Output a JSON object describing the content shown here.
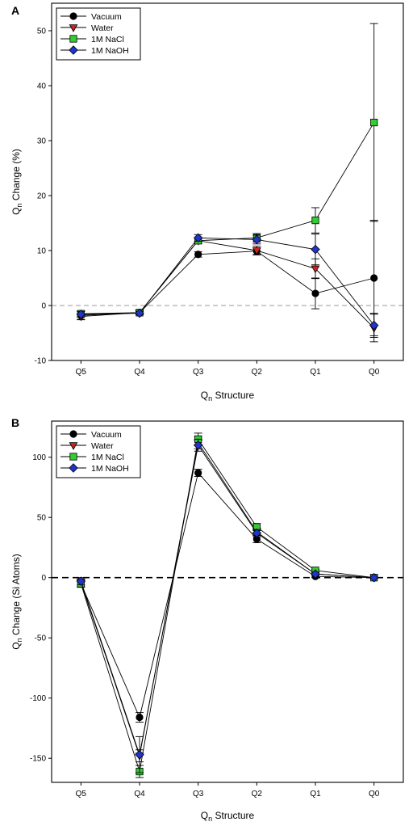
{
  "chart_data": [
    {
      "type": "line",
      "panel_label": "A",
      "categories": [
        "Q5",
        "Q4",
        "Q3",
        "Q2",
        "Q1",
        "Q0"
      ],
      "ylabel_main": "Q",
      "ylabel_sub": "n",
      "ylabel_rest": " Change (%)",
      "xlabel_main": "Q",
      "xlabel_sub": "n",
      "xlabel_rest": " Structure",
      "ylim": [
        -10,
        55
      ],
      "yticks": [
        -10,
        0,
        10,
        20,
        30,
        40,
        50
      ],
      "zero_line": "dashed gray",
      "legend_position": "top-left",
      "series": [
        {
          "name": "Vacuum",
          "color": "#000000",
          "marker": "circle",
          "values": [
            -1.8,
            -1.3,
            9.3,
            9.9,
            2.2,
            5.0
          ],
          "errors": [
            0.8,
            0.3,
            0.5,
            0.6,
            2.8,
            10.5
          ]
        },
        {
          "name": "Water",
          "color": "#cc2222",
          "marker": "triangle-down",
          "values": [
            -2.0,
            -1.3,
            11.8,
            10.0,
            6.7,
            -4.1
          ],
          "errors": [
            0.5,
            0.3,
            0.5,
            0.8,
            1.8,
            2.5
          ]
        },
        {
          "name": "1M NaCl",
          "color": "#33cc33",
          "marker": "square",
          "values": [
            -1.5,
            -1.3,
            11.8,
            12.3,
            15.5,
            33.3
          ],
          "errors": [
            0.5,
            0.3,
            0.5,
            0.8,
            2.3,
            18.0
          ]
        },
        {
          "name": "1M NaOH",
          "color": "#2233cc",
          "marker": "diamond",
          "values": [
            -1.6,
            -1.4,
            12.3,
            12.0,
            10.2,
            -3.6
          ],
          "errors": [
            0.5,
            0.3,
            0.6,
            0.8,
            2.8,
            2.2
          ]
        }
      ]
    },
    {
      "type": "line",
      "panel_label": "B",
      "categories": [
        "Q5",
        "Q4",
        "Q3",
        "Q2",
        "Q1",
        "Q0"
      ],
      "ylabel_main": "Q",
      "ylabel_sub": "n",
      "ylabel_rest": " Change (Si Atoms)",
      "xlabel_main": "Q",
      "xlabel_sub": "n",
      "xlabel_rest": " Structure",
      "ylim": [
        -170,
        130
      ],
      "yticks": [
        -150,
        -100,
        -50,
        0,
        50,
        100
      ],
      "zero_line": "dashed black",
      "legend_position": "top-left",
      "series": [
        {
          "name": "Vacuum",
          "color": "#000000",
          "marker": "circle",
          "values": [
            -5,
            -116,
            87,
            32,
            1,
            0
          ],
          "errors": [
            3,
            4,
            3,
            3,
            1,
            0.5
          ]
        },
        {
          "name": "Water",
          "color": "#cc2222",
          "marker": "triangle-down",
          "values": [
            -4,
            -148,
            112,
            38,
            3,
            0
          ],
          "errors": [
            3,
            5,
            5,
            3,
            1,
            0.5
          ]
        },
        {
          "name": "1M NaCl",
          "color": "#33cc33",
          "marker": "square",
          "values": [
            -5,
            -161,
            115,
            42,
            6,
            0
          ],
          "errors": [
            3,
            5,
            5,
            3,
            1,
            0.5
          ]
        },
        {
          "name": "1M NaOH",
          "color": "#2233cc",
          "marker": "diamond",
          "values": [
            -3,
            -147,
            110,
            37,
            3,
            0
          ],
          "errors": [
            3,
            15,
            5,
            3,
            1,
            0.5
          ]
        }
      ]
    }
  ]
}
